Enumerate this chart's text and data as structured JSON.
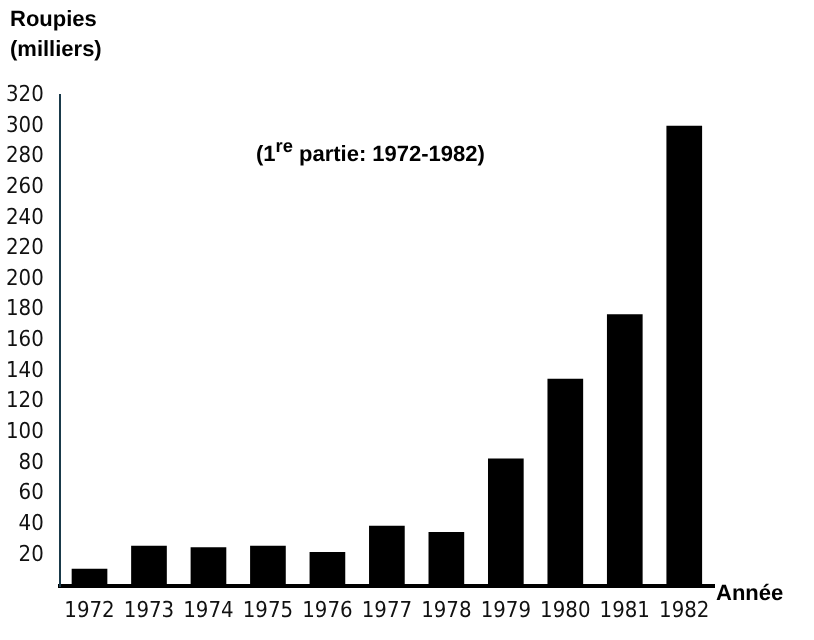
{
  "chart_data": {
    "type": "bar",
    "ylabel": "Roupies (milliers)",
    "xlabel": "Année",
    "annotations": [
      "(1$^{re}$ partie: 1972-1982)"
    ],
    "categories": [
      "1972",
      "1973",
      "1974",
      "1975",
      "1976",
      "1977",
      "1978",
      "1979",
      "1980",
      "1981",
      "1982"
    ],
    "values": [
      11,
      26,
      25,
      26,
      22,
      39,
      35,
      83,
      135,
      177,
      300
    ],
    "color": "#000000",
    "ylim": [
      0,
      320
    ],
    "yticks": [
      {
        "value": 0,
        "label": null
      },
      20,
      40,
      60,
      80,
      100,
      120,
      140,
      160,
      180,
      200,
      220,
      240,
      260,
      280,
      300,
      320
    ],
    "grid": false,
    "legend": false
  }
}
